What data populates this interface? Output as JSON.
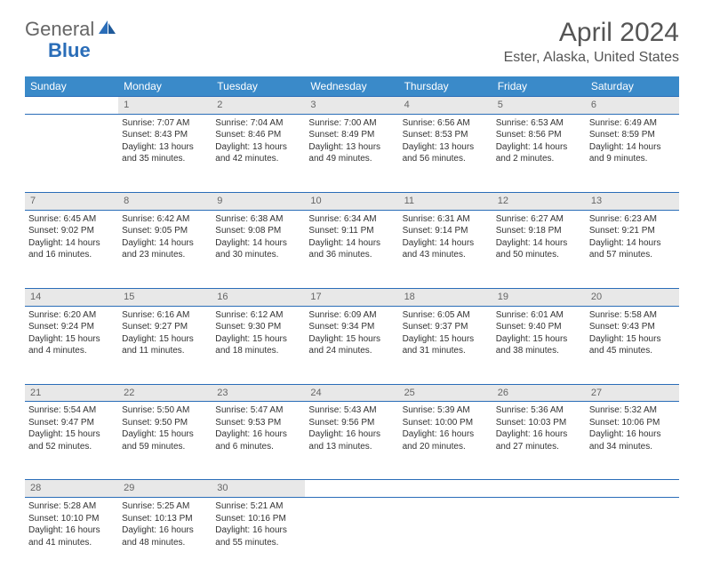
{
  "logo": {
    "part1": "General",
    "part2": "Blue"
  },
  "title": "April 2024",
  "location": "Ester, Alaska, United States",
  "header_bg": "#3a8ac9",
  "daynum_bg": "#e8e8e8",
  "border_color": "#2a6db8",
  "weekdays": [
    "Sunday",
    "Monday",
    "Tuesday",
    "Wednesday",
    "Thursday",
    "Friday",
    "Saturday"
  ],
  "weeks": [
    [
      null,
      {
        "n": "1",
        "sr": "Sunrise: 7:07 AM",
        "ss": "Sunset: 8:43 PM",
        "d1": "Daylight: 13 hours",
        "d2": "and 35 minutes."
      },
      {
        "n": "2",
        "sr": "Sunrise: 7:04 AM",
        "ss": "Sunset: 8:46 PM",
        "d1": "Daylight: 13 hours",
        "d2": "and 42 minutes."
      },
      {
        "n": "3",
        "sr": "Sunrise: 7:00 AM",
        "ss": "Sunset: 8:49 PM",
        "d1": "Daylight: 13 hours",
        "d2": "and 49 minutes."
      },
      {
        "n": "4",
        "sr": "Sunrise: 6:56 AM",
        "ss": "Sunset: 8:53 PM",
        "d1": "Daylight: 13 hours",
        "d2": "and 56 minutes."
      },
      {
        "n": "5",
        "sr": "Sunrise: 6:53 AM",
        "ss": "Sunset: 8:56 PM",
        "d1": "Daylight: 14 hours",
        "d2": "and 2 minutes."
      },
      {
        "n": "6",
        "sr": "Sunrise: 6:49 AM",
        "ss": "Sunset: 8:59 PM",
        "d1": "Daylight: 14 hours",
        "d2": "and 9 minutes."
      }
    ],
    [
      {
        "n": "7",
        "sr": "Sunrise: 6:45 AM",
        "ss": "Sunset: 9:02 PM",
        "d1": "Daylight: 14 hours",
        "d2": "and 16 minutes."
      },
      {
        "n": "8",
        "sr": "Sunrise: 6:42 AM",
        "ss": "Sunset: 9:05 PM",
        "d1": "Daylight: 14 hours",
        "d2": "and 23 minutes."
      },
      {
        "n": "9",
        "sr": "Sunrise: 6:38 AM",
        "ss": "Sunset: 9:08 PM",
        "d1": "Daylight: 14 hours",
        "d2": "and 30 minutes."
      },
      {
        "n": "10",
        "sr": "Sunrise: 6:34 AM",
        "ss": "Sunset: 9:11 PM",
        "d1": "Daylight: 14 hours",
        "d2": "and 36 minutes."
      },
      {
        "n": "11",
        "sr": "Sunrise: 6:31 AM",
        "ss": "Sunset: 9:14 PM",
        "d1": "Daylight: 14 hours",
        "d2": "and 43 minutes."
      },
      {
        "n": "12",
        "sr": "Sunrise: 6:27 AM",
        "ss": "Sunset: 9:18 PM",
        "d1": "Daylight: 14 hours",
        "d2": "and 50 minutes."
      },
      {
        "n": "13",
        "sr": "Sunrise: 6:23 AM",
        "ss": "Sunset: 9:21 PM",
        "d1": "Daylight: 14 hours",
        "d2": "and 57 minutes."
      }
    ],
    [
      {
        "n": "14",
        "sr": "Sunrise: 6:20 AM",
        "ss": "Sunset: 9:24 PM",
        "d1": "Daylight: 15 hours",
        "d2": "and 4 minutes."
      },
      {
        "n": "15",
        "sr": "Sunrise: 6:16 AM",
        "ss": "Sunset: 9:27 PM",
        "d1": "Daylight: 15 hours",
        "d2": "and 11 minutes."
      },
      {
        "n": "16",
        "sr": "Sunrise: 6:12 AM",
        "ss": "Sunset: 9:30 PM",
        "d1": "Daylight: 15 hours",
        "d2": "and 18 minutes."
      },
      {
        "n": "17",
        "sr": "Sunrise: 6:09 AM",
        "ss": "Sunset: 9:34 PM",
        "d1": "Daylight: 15 hours",
        "d2": "and 24 minutes."
      },
      {
        "n": "18",
        "sr": "Sunrise: 6:05 AM",
        "ss": "Sunset: 9:37 PM",
        "d1": "Daylight: 15 hours",
        "d2": "and 31 minutes."
      },
      {
        "n": "19",
        "sr": "Sunrise: 6:01 AM",
        "ss": "Sunset: 9:40 PM",
        "d1": "Daylight: 15 hours",
        "d2": "and 38 minutes."
      },
      {
        "n": "20",
        "sr": "Sunrise: 5:58 AM",
        "ss": "Sunset: 9:43 PM",
        "d1": "Daylight: 15 hours",
        "d2": "and 45 minutes."
      }
    ],
    [
      {
        "n": "21",
        "sr": "Sunrise: 5:54 AM",
        "ss": "Sunset: 9:47 PM",
        "d1": "Daylight: 15 hours",
        "d2": "and 52 minutes."
      },
      {
        "n": "22",
        "sr": "Sunrise: 5:50 AM",
        "ss": "Sunset: 9:50 PM",
        "d1": "Daylight: 15 hours",
        "d2": "and 59 minutes."
      },
      {
        "n": "23",
        "sr": "Sunrise: 5:47 AM",
        "ss": "Sunset: 9:53 PM",
        "d1": "Daylight: 16 hours",
        "d2": "and 6 minutes."
      },
      {
        "n": "24",
        "sr": "Sunrise: 5:43 AM",
        "ss": "Sunset: 9:56 PM",
        "d1": "Daylight: 16 hours",
        "d2": "and 13 minutes."
      },
      {
        "n": "25",
        "sr": "Sunrise: 5:39 AM",
        "ss": "Sunset: 10:00 PM",
        "d1": "Daylight: 16 hours",
        "d2": "and 20 minutes."
      },
      {
        "n": "26",
        "sr": "Sunrise: 5:36 AM",
        "ss": "Sunset: 10:03 PM",
        "d1": "Daylight: 16 hours",
        "d2": "and 27 minutes."
      },
      {
        "n": "27",
        "sr": "Sunrise: 5:32 AM",
        "ss": "Sunset: 10:06 PM",
        "d1": "Daylight: 16 hours",
        "d2": "and 34 minutes."
      }
    ],
    [
      {
        "n": "28",
        "sr": "Sunrise: 5:28 AM",
        "ss": "Sunset: 10:10 PM",
        "d1": "Daylight: 16 hours",
        "d2": "and 41 minutes."
      },
      {
        "n": "29",
        "sr": "Sunrise: 5:25 AM",
        "ss": "Sunset: 10:13 PM",
        "d1": "Daylight: 16 hours",
        "d2": "and 48 minutes."
      },
      {
        "n": "30",
        "sr": "Sunrise: 5:21 AM",
        "ss": "Sunset: 10:16 PM",
        "d1": "Daylight: 16 hours",
        "d2": "and 55 minutes."
      },
      null,
      null,
      null,
      null
    ]
  ]
}
